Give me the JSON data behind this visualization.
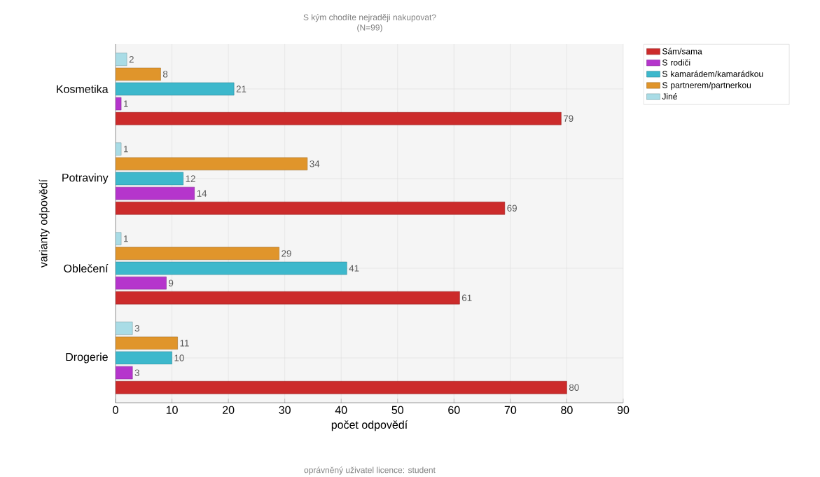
{
  "chart_data": {
    "type": "bar",
    "orientation": "horizontal",
    "title": "S kým chodíte nejraději nakupovat?",
    "subtitle": "(N=99)",
    "xlabel": "počet odpovědí",
    "ylabel": "varianty odpovědí",
    "categories": [
      "Kosmetika",
      "Potraviny",
      "Oblečení",
      "Drogerie"
    ],
    "series": [
      {
        "name": "Sám/sama",
        "color": "#cc2b2b",
        "values": [
          79,
          69,
          61,
          80
        ]
      },
      {
        "name": "S rodiči",
        "color": "#b535cc",
        "values": [
          1,
          14,
          9,
          3
        ]
      },
      {
        "name": "S kamarádem/kamarádkou",
        "color": "#3db8cc",
        "values": [
          21,
          12,
          41,
          10
        ]
      },
      {
        "name": "S partnerem/partnerkou",
        "color": "#e0952b",
        "values": [
          8,
          34,
          29,
          11
        ]
      },
      {
        "name": "Jiné",
        "color": "#a9dce6",
        "values": [
          2,
          1,
          1,
          3
        ]
      }
    ],
    "xlim": [
      0,
      90
    ],
    "xticks": [
      0,
      10,
      20,
      30,
      40,
      50,
      60,
      70,
      80,
      90
    ],
    "grid": true,
    "legend": "top right",
    "data_labels": true,
    "annotations": [
      "oprávněný uživatel licence: student"
    ]
  }
}
